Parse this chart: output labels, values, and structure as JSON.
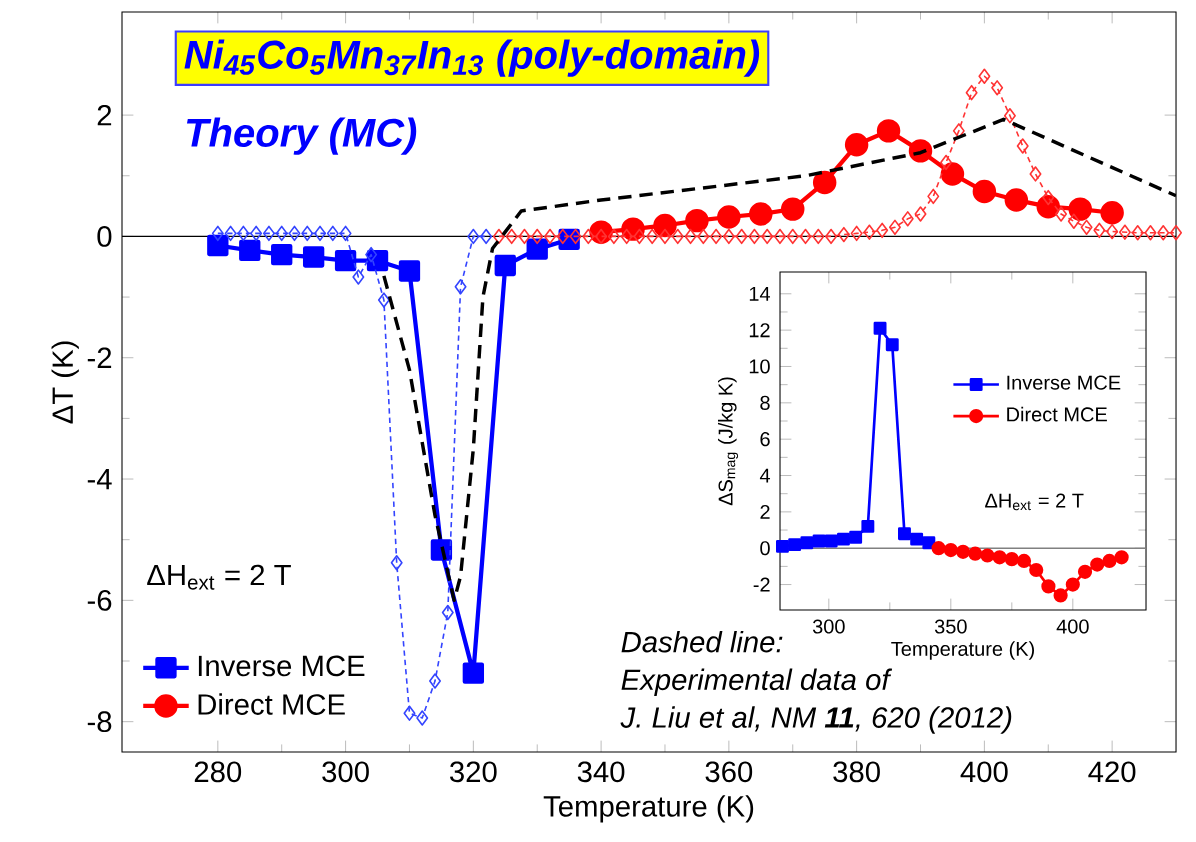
{
  "chart_data": [
    {
      "type": "line",
      "title": "Ni$_{45}$Co$_{5}$Mn$_{37}$In$_{13}$ (poly-domain)",
      "subtitle": "Theory (MC)",
      "xlabel": "Temperature (K)",
      "ylabel": "ΔT (K)",
      "annotations": [
        "ΔH$_{ext}$ = 2 T",
        "Dashed line:",
        "Experimental data of",
        "J. Liu et al, NM **11**, 620 (2012)"
      ],
      "xlim": [
        265,
        430
      ],
      "ylim": [
        -8.5,
        3.7
      ],
      "xticks": [
        280,
        300,
        320,
        340,
        360,
        380,
        400,
        420
      ],
      "yticks": [
        -8,
        -6,
        -4,
        -2,
        0,
        2
      ],
      "legend": "bottom left",
      "ref_lines": [
        {
          "axis": "y",
          "value": 0,
          "color": "#000000"
        }
      ],
      "series": [
        {
          "name": "Inverse MCE",
          "color": "#0000ff",
          "marker": "square",
          "line_style": "solid",
          "x": [
            280,
            285,
            290,
            295,
            300,
            305,
            310,
            315,
            320,
            325,
            330,
            335
          ],
          "values": [
            -0.15,
            -0.23,
            -0.3,
            -0.34,
            -0.4,
            -0.4,
            -0.57,
            -5.17,
            -7.2,
            -0.48,
            -0.21,
            -0.05
          ]
        },
        {
          "name": "Direct MCE",
          "color": "#ff0000",
          "marker": "circle",
          "line_style": "solid",
          "x": [
            340,
            345,
            350,
            355,
            360,
            365,
            370,
            375,
            380,
            385,
            390,
            395,
            400,
            405,
            410,
            415,
            420
          ],
          "values": [
            0.07,
            0.12,
            0.18,
            0.26,
            0.32,
            0.37,
            0.45,
            0.89,
            1.51,
            1.74,
            1.41,
            1.03,
            0.74,
            0.6,
            0.49,
            0.45,
            0.39
          ]
        },
        {
          "color": "#3344ff",
          "marker": "diamond",
          "line_style": "dashed",
          "x": [
            280,
            282,
            284,
            286,
            288,
            290,
            292,
            294,
            296,
            298,
            300,
            302,
            304,
            306,
            308,
            310,
            312,
            314,
            316,
            318,
            320,
            322
          ],
          "values": [
            0.05,
            0.05,
            0.05,
            0.05,
            0.05,
            0.05,
            0.05,
            0.05,
            0.05,
            0.05,
            0.05,
            -0.67,
            -0.3,
            -1.05,
            -5.38,
            -7.86,
            -7.94,
            -7.33,
            -6.2,
            -0.83,
            0.0,
            0.0
          ]
        },
        {
          "color": "#ff3333",
          "marker": "diamond",
          "line_style": "dashed",
          "x": [
            324,
            326,
            328,
            330,
            332,
            334,
            336,
            338,
            340,
            342,
            344,
            346,
            348,
            350,
            352,
            354,
            356,
            358,
            360,
            362,
            364,
            366,
            368,
            370,
            372,
            374,
            376,
            378,
            380,
            382,
            384,
            386,
            388,
            390,
            392,
            394,
            396,
            398,
            400,
            402,
            404,
            406,
            408,
            410,
            412,
            414,
            416,
            418,
            420,
            422,
            424,
            426,
            428,
            430
          ],
          "values": [
            0.0,
            0.0,
            0.0,
            0.0,
            0.0,
            0.0,
            0.0,
            0.0,
            0.0,
            0.0,
            0.0,
            0.0,
            0.0,
            0.0,
            0.0,
            0.0,
            0.0,
            0.0,
            0.0,
            0.0,
            0.0,
            0.0,
            0.0,
            0.0,
            0.0,
            0.0,
            0.0,
            0.03,
            0.05,
            0.07,
            0.1,
            0.15,
            0.29,
            0.37,
            0.66,
            1.22,
            1.74,
            2.37,
            2.64,
            2.45,
            1.99,
            1.49,
            1.03,
            0.64,
            0.37,
            0.25,
            0.15,
            0.1,
            0.08,
            0.07,
            0.06,
            0.06,
            0.06,
            0.06
          ]
        },
        {
          "color": "#000000",
          "marker": "none",
          "line_style": "dashed",
          "x": [
            306,
            310,
            314,
            317,
            318,
            320,
            321.5,
            323,
            327.5,
            340,
            372,
            390,
            403,
            430
          ],
          "values": [
            -0.65,
            -2.2,
            -4.6,
            -6.0,
            -5.6,
            -3.5,
            -1.0,
            -0.2,
            0.42,
            0.6,
            1.0,
            1.38,
            1.93,
            0.67
          ]
        }
      ]
    },
    {
      "type": "line",
      "xlabel": "Temperature (K)",
      "ylabel": "ΔS$_{mag}$ (J/kg K)",
      "annotations": [
        "ΔH$_{ext}$ = 2 T"
      ],
      "xlim": [
        280,
        430
      ],
      "ylim": [
        -3.4,
        15.2
      ],
      "xticks": [
        300,
        350,
        400
      ],
      "yticks": [
        -2,
        0,
        2,
        4,
        6,
        8,
        10,
        12,
        14
      ],
      "legend": "right",
      "ref_lines": [
        {
          "axis": "y",
          "value": 0,
          "color": "#808080"
        }
      ],
      "series": [
        {
          "name": "Inverse MCE",
          "color": "#0000ff",
          "marker": "square",
          "line_style": "solid",
          "x": [
            281,
            286,
            291,
            296,
            301,
            306,
            311,
            316,
            321,
            326,
            331,
            336,
            341
          ],
          "values": [
            0.1,
            0.2,
            0.3,
            0.4,
            0.4,
            0.5,
            0.6,
            1.2,
            12.1,
            11.2,
            0.8,
            0.5,
            0.3
          ]
        },
        {
          "name": "Direct MCE",
          "color": "#ff0000",
          "marker": "circle",
          "line_style": "solid",
          "x": [
            345,
            350,
            355,
            360,
            365,
            370,
            375,
            380,
            385,
            390,
            395,
            400,
            405,
            410,
            415,
            420
          ],
          "values": [
            0.0,
            -0.1,
            -0.2,
            -0.3,
            -0.4,
            -0.5,
            -0.6,
            -0.7,
            -1.2,
            -2.1,
            -2.6,
            -2.0,
            -1.3,
            -0.9,
            -0.7,
            -0.5
          ]
        }
      ]
    }
  ]
}
